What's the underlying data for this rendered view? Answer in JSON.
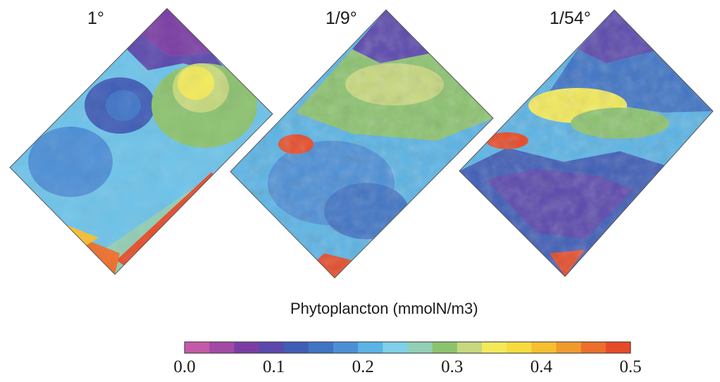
{
  "panels": [
    {
      "label": "1°"
    },
    {
      "label": "1/9°"
    },
    {
      "label": "1/54°"
    }
  ],
  "colorbar": {
    "title": "Phytoplancton (mmolN/m3)",
    "ticks": [
      "0.0",
      "0.1",
      "0.2",
      "0.3",
      "0.4",
      "0.5"
    ],
    "range": [
      0.0,
      0.5
    ],
    "colors": [
      "#c65aa8",
      "#a24aa6",
      "#7b3da4",
      "#5b48ad",
      "#3f5db7",
      "#3f74c6",
      "#4c8fd7",
      "#5ab4e6",
      "#7fd1e9",
      "#92cfb4",
      "#8cc36f",
      "#c7d97e",
      "#f3ea5a",
      "#f7dc3e",
      "#f6bf2e",
      "#f29a2d",
      "#ed6f2b",
      "#e74a27"
    ]
  }
}
